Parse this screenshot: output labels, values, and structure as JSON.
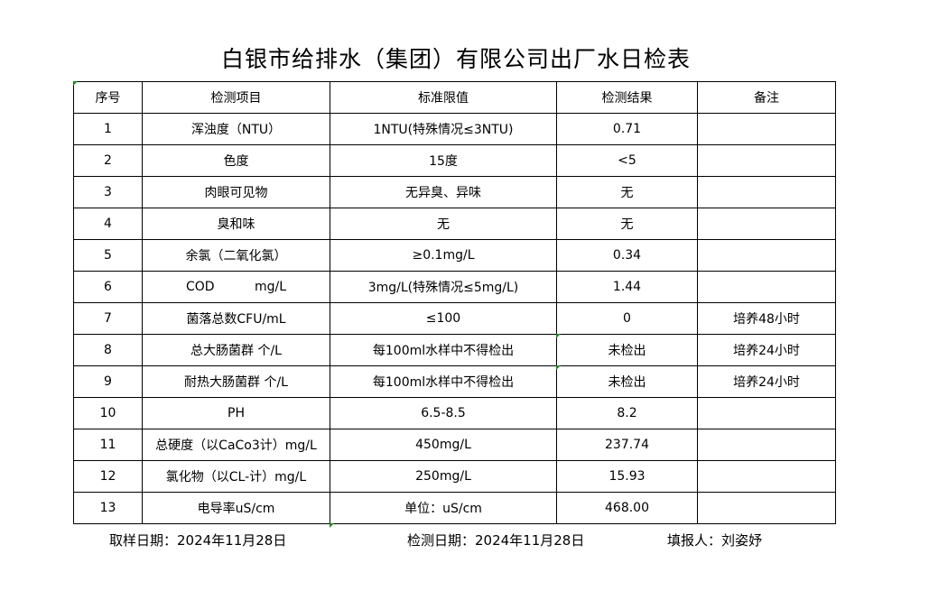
{
  "title": "白银市给排水（集团）有限公司出厂水日检表",
  "headers": [
    "序号",
    "检测项目",
    "标准限值",
    "检测结果",
    "备注"
  ],
  "rows": [
    [
      "1",
      "浑浊度（NTU）",
      "1NTU(特殊情况≤3NTU)",
      "0.71",
      ""
    ],
    [
      "2",
      "色度",
      "15度",
      "<5",
      ""
    ],
    [
      "3",
      "肉眼可见物",
      "无异臭、异味",
      "无",
      ""
    ],
    [
      "4",
      "臭和味",
      "无",
      "无",
      ""
    ],
    [
      "5",
      "余氯（二氧化氯）",
      "≥0.1mg/L",
      "0.34",
      ""
    ],
    [
      "6",
      "COD          mg/L",
      "3mg/L(特殊情况≤5mg/L)",
      "1.44",
      ""
    ],
    [
      "7",
      "菌落总数CFU/mL",
      "≤100",
      "0",
      "培养48小时"
    ],
    [
      "8",
      "总大肠菌群 个/L",
      "每100ml水样中不得检出",
      "未检出",
      "培养24小时"
    ],
    [
      "9",
      "耐热大肠菌群 个/L",
      "每100ml水样中不得检出",
      "未检出",
      "培养24小时"
    ],
    [
      "10",
      "PH",
      "6.5-8.5",
      "8.2",
      ""
    ],
    [
      "11",
      "总硬度（以CaCo3计）mg/L",
      "450mg/L",
      "237.74",
      ""
    ],
    [
      "12",
      "氯化物（以CL-计）mg/L",
      "250mg/L",
      "15.93",
      ""
    ],
    [
      "13",
      "电导率uS/cm",
      "单位：uS/cm",
      "468.00",
      ""
    ]
  ],
  "footer": {
    "sampling_date": "取样日期：2024年11月28日",
    "test_date": "检测日期：2024年11月28日",
    "reporter": "填报人：刘姿妤"
  }
}
